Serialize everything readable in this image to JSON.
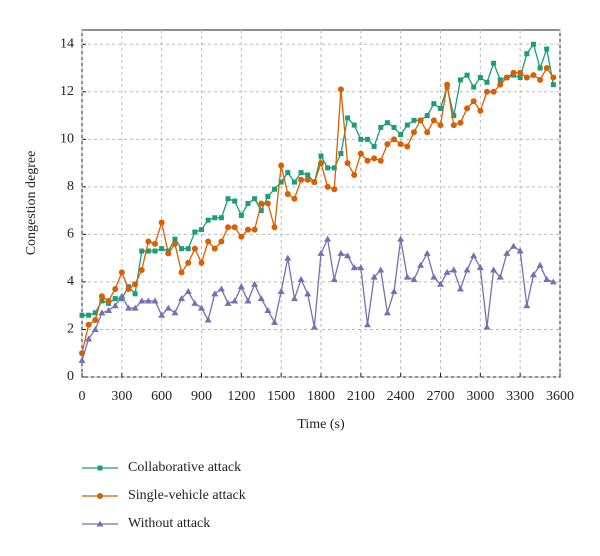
{
  "chart_data": {
    "type": "line",
    "xlabel": "Time (s)",
    "ylabel": "Congestion degree",
    "x": [
      0,
      50,
      100,
      150,
      200,
      250,
      300,
      350,
      400,
      450,
      500,
      550,
      600,
      650,
      700,
      750,
      800,
      850,
      900,
      950,
      1000,
      1050,
      1100,
      1150,
      1200,
      1250,
      1300,
      1350,
      1400,
      1450,
      1500,
      1550,
      1600,
      1650,
      1700,
      1750,
      1800,
      1850,
      1900,
      1950,
      2000,
      2050,
      2100,
      2150,
      2200,
      2250,
      2300,
      2350,
      2400,
      2450,
      2500,
      2550,
      2600,
      2650,
      2700,
      2750,
      2800,
      2850,
      2900,
      2950,
      3000,
      3050,
      3100,
      3150,
      3200,
      3250,
      3300,
      3350,
      3400,
      3450,
      3500,
      3550
    ],
    "series": [
      {
        "name": "Collaborative attack",
        "color": "#1b9e77",
        "marker": "square",
        "values": [
          2.6,
          2.6,
          2.7,
          3.2,
          3.1,
          3.3,
          3.3,
          3.8,
          3.5,
          5.3,
          5.3,
          5.3,
          5.4,
          5.3,
          5.8,
          5.4,
          5.4,
          6.1,
          6.2,
          6.6,
          6.7,
          6.7,
          7.5,
          7.4,
          6.8,
          7.3,
          7.5,
          7.0,
          7.6,
          7.9,
          8.2,
          8.6,
          8.2,
          8.6,
          8.5,
          8.2,
          9.3,
          8.8,
          8.8,
          9.4,
          10.9,
          10.6,
          10.0,
          10.0,
          9.7,
          10.5,
          10.7,
          10.5,
          10.2,
          10.6,
          10.8,
          10.8,
          11.0,
          11.5,
          11.3,
          12.2,
          11.0,
          12.5,
          12.7,
          12.2,
          12.6,
          12.4,
          13.2,
          12.5,
          12.6,
          12.7,
          12.6,
          13.6,
          14.0,
          13.0,
          13.8,
          12.3
        ]
      },
      {
        "name": "Single-vehicle attack",
        "color": "#d95f02",
        "marker": "circle",
        "values": [
          1.0,
          2.2,
          2.4,
          3.4,
          3.2,
          3.7,
          4.4,
          3.7,
          3.9,
          4.5,
          5.7,
          5.6,
          6.5,
          5.2,
          5.6,
          4.4,
          4.8,
          5.4,
          4.8,
          5.7,
          5.4,
          5.7,
          6.3,
          6.3,
          5.9,
          6.2,
          6.2,
          7.3,
          7.3,
          6.3,
          8.9,
          7.7,
          7.5,
          8.3,
          8.3,
          8.2,
          9.0,
          8.0,
          7.9,
          12.1,
          9.0,
          8.5,
          9.4,
          9.1,
          9.2,
          9.1,
          9.8,
          10.0,
          9.8,
          9.7,
          10.3,
          10.8,
          10.3,
          10.8,
          10.6,
          12.3,
          10.6,
          10.7,
          11.3,
          11.6,
          11.2,
          12.0,
          12.0,
          12.3,
          12.6,
          12.8,
          12.8,
          12.6,
          12.7,
          12.5,
          13.0,
          12.6
        ]
      },
      {
        "name": "Without attack",
        "color": "#7570b3",
        "marker": "triangle",
        "values": [
          0.7,
          1.6,
          2.0,
          2.7,
          2.8,
          3.0,
          3.4,
          2.9,
          2.9,
          3.2,
          3.2,
          3.2,
          2.6,
          2.9,
          2.7,
          3.3,
          3.6,
          3.1,
          2.9,
          2.4,
          3.5,
          3.7,
          3.1,
          3.2,
          3.8,
          3.2,
          3.9,
          3.3,
          2.8,
          2.3,
          3.6,
          5.0,
          3.3,
          4.1,
          3.5,
          2.1,
          5.2,
          5.8,
          4.1,
          5.2,
          5.1,
          4.6,
          4.6,
          2.2,
          4.2,
          4.5,
          2.7,
          3.6,
          5.8,
          4.2,
          4.1,
          4.7,
          5.2,
          4.2,
          3.9,
          4.4,
          4.5,
          3.7,
          4.5,
          5.1,
          4.6,
          2.1,
          4.5,
          4.2,
          5.2,
          5.5,
          5.3,
          3.0,
          4.3,
          4.7,
          4.1,
          4.0
        ]
      }
    ],
    "xlim": [
      0,
      3600
    ],
    "xticks": [
      0,
      300,
      600,
      900,
      1200,
      1500,
      1800,
      2100,
      2400,
      2700,
      3000,
      3300,
      3600
    ],
    "ylim": [
      0,
      14.6
    ],
    "yticks": [
      0,
      2,
      4,
      6,
      8,
      10,
      12,
      14
    ],
    "grid": true,
    "legend": "bottom"
  }
}
